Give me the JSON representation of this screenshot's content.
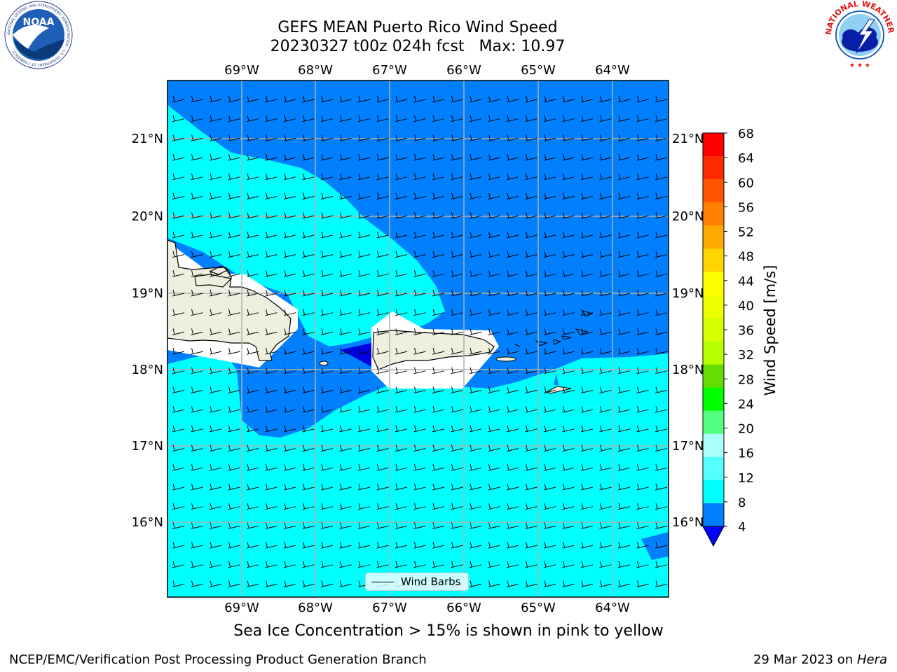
{
  "header": {
    "title_line1": "GEFS MEAN Puerto Rico Wind Speed",
    "title_line2": "20230327 t00z 024h fcst   Max: 10.97"
  },
  "logos": {
    "noaa_text": "NOAA",
    "noaa_ring_text": "NATIONAL OCEANIC AND ATMOSPHERIC ADMINISTRATION · U.S. DEPARTMENT OF COMMERCE",
    "nws_ring_text": "NATIONAL WEATHER SERVICE"
  },
  "map": {
    "lon_labels": [
      "69°W",
      "68°W",
      "67°W",
      "66°W",
      "65°W",
      "64°W"
    ],
    "lat_labels": [
      "21°N",
      "20°N",
      "19°N",
      "18°N",
      "17°N",
      "16°N"
    ],
    "legend_label": "Wind Barbs",
    "colors": {
      "ocean_low": "#0080ff",
      "ocean_mid": "#00ffff",
      "ocean_darkest": "#0000e0",
      "land": "#efefdf",
      "grid": "#b0b0b0"
    }
  },
  "colorbar": {
    "label": "Wind Speed [m/s]",
    "ticks": [
      "68",
      "64",
      "60",
      "56",
      "52",
      "48",
      "44",
      "40",
      "36",
      "32",
      "28",
      "24",
      "20",
      "16",
      "12",
      "8",
      "4"
    ],
    "colors_top_to_bottom": [
      "#ff0000",
      "#ff2a00",
      "#ff5500",
      "#ff8000",
      "#ffaa00",
      "#ffd400",
      "#ffff00",
      "#eeff00",
      "#d4ff00",
      "#b8ff00",
      "#66dd00",
      "#00ff00",
      "#55ff80",
      "#aaffff",
      "#55ffff",
      "#00ffff",
      "#0080ff"
    ],
    "extend_color": "#0000ff"
  },
  "footer": {
    "note": "Sea Ice Concentration > 15% is shown in pink to yellow",
    "left": "NCEP/EMC/Verification Post Processing Product Generation Branch",
    "right_date": "29 Mar 2023 on ",
    "right_host": "Hera"
  }
}
